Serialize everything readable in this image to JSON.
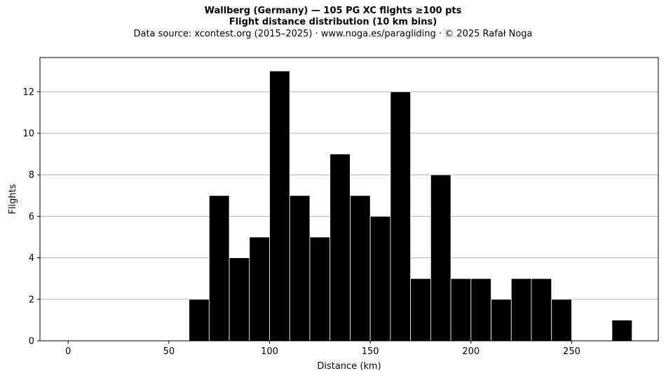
{
  "header": {
    "title": "Wallberg (Germany)  —  105 PG XC flights ≥100 pts",
    "subtitle": "Flight distance distribution (10 km bins)",
    "source": "Data source: xcontest.org (2015–2025)  ·  www.noga.es/paragliding  ·  © 2025 Rafał Noga"
  },
  "chart_data": {
    "type": "bar",
    "title": "Wallberg (Germany)  —  105 PG XC flights ≥100 pts",
    "subtitle": "Flight distance distribution (10 km bins)",
    "xlabel": "Distance (km)",
    "ylabel": "Flights",
    "bin_width": 10,
    "bins": [
      {
        "start": 60,
        "end": 70,
        "count": 2
      },
      {
        "start": 70,
        "end": 80,
        "count": 7
      },
      {
        "start": 80,
        "end": 90,
        "count": 4
      },
      {
        "start": 90,
        "end": 100,
        "count": 5
      },
      {
        "start": 100,
        "end": 110,
        "count": 13
      },
      {
        "start": 110,
        "end": 120,
        "count": 7
      },
      {
        "start": 120,
        "end": 130,
        "count": 5
      },
      {
        "start": 130,
        "end": 140,
        "count": 9
      },
      {
        "start": 140,
        "end": 150,
        "count": 7
      },
      {
        "start": 150,
        "end": 160,
        "count": 6
      },
      {
        "start": 160,
        "end": 170,
        "count": 12
      },
      {
        "start": 170,
        "end": 180,
        "count": 3
      },
      {
        "start": 180,
        "end": 190,
        "count": 8
      },
      {
        "start": 190,
        "end": 200,
        "count": 3
      },
      {
        "start": 200,
        "end": 210,
        "count": 3
      },
      {
        "start": 210,
        "end": 220,
        "count": 2
      },
      {
        "start": 220,
        "end": 230,
        "count": 3
      },
      {
        "start": 230,
        "end": 240,
        "count": 3
      },
      {
        "start": 240,
        "end": 250,
        "count": 2
      },
      {
        "start": 270,
        "end": 280,
        "count": 1
      }
    ],
    "xlim": [
      -14,
      293
    ],
    "ylim": [
      0,
      13.65
    ],
    "xticks": [
      0,
      50,
      100,
      150,
      200,
      250
    ],
    "yticks": [
      0,
      2,
      4,
      6,
      8,
      10,
      12
    ],
    "grid": "horizontal",
    "bar_color": "#000000",
    "bar_edge_color": "#ffffff",
    "grid_color": "#b0b0b0"
  }
}
